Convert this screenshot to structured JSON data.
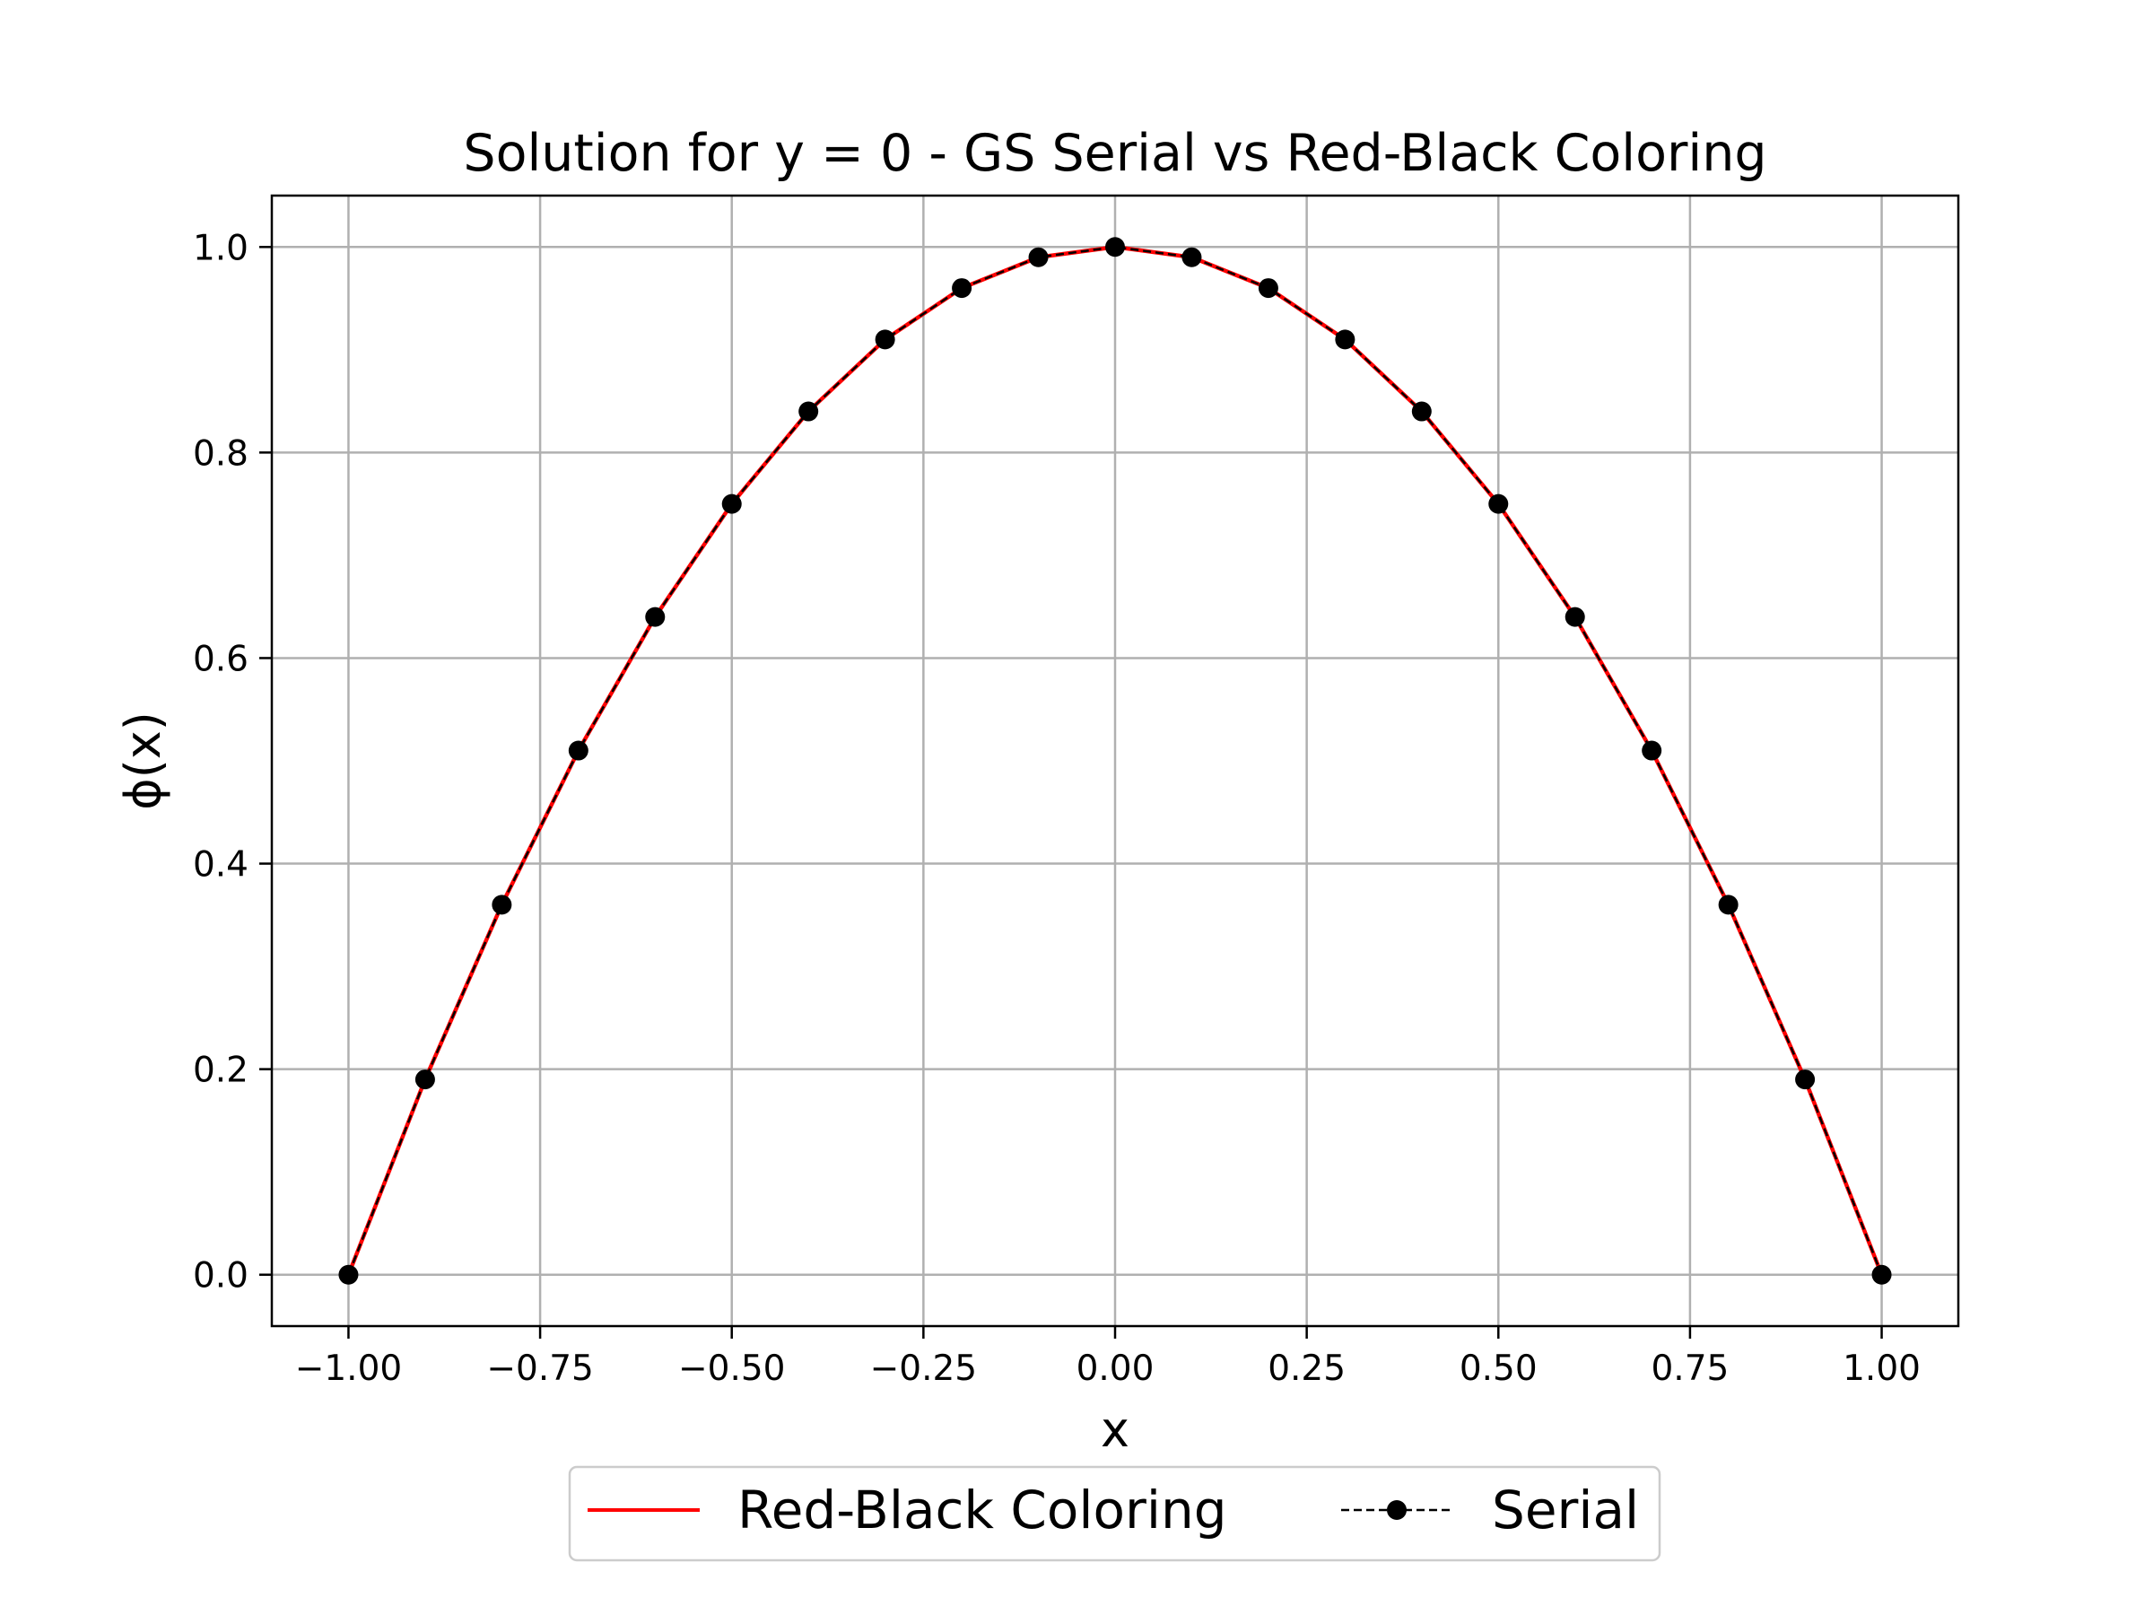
{
  "chart_data": {
    "type": "line",
    "title": "Solution for y = 0 - GS Serial vs Red-Black Coloring",
    "xlabel": "x",
    "ylabel": "ϕ(x)",
    "xlim": [
      -1.1,
      1.1
    ],
    "ylim": [
      -0.05,
      1.05
    ],
    "grid": true,
    "legend_position": "bottom-center",
    "x_ticks": [
      -1.0,
      -0.75,
      -0.5,
      -0.25,
      0.0,
      0.25,
      0.5,
      0.75,
      1.0
    ],
    "x_tick_labels": [
      "−1.00",
      "−0.75",
      "−0.50",
      "−0.25",
      "0.00",
      "0.25",
      "0.50",
      "0.75",
      "1.00"
    ],
    "y_ticks": [
      0.0,
      0.2,
      0.4,
      0.6,
      0.8,
      1.0
    ],
    "y_tick_labels": [
      "0.0",
      "0.2",
      "0.4",
      "0.6",
      "0.8",
      "1.0"
    ],
    "x": [
      -1.0,
      -0.9,
      -0.8,
      -0.7,
      -0.6,
      -0.5,
      -0.4,
      -0.3,
      -0.2,
      -0.1,
      0.0,
      0.1,
      0.2,
      0.3,
      0.4,
      0.5,
      0.6,
      0.7,
      0.8,
      0.9,
      1.0
    ],
    "series": [
      {
        "name": "Red-Black Coloring",
        "color": "#ff0000",
        "style": "solid",
        "values": [
          0.0,
          0.19,
          0.36,
          0.51,
          0.64,
          0.75,
          0.84,
          0.91,
          0.96,
          0.99,
          1.0,
          0.99,
          0.96,
          0.91,
          0.84,
          0.75,
          0.64,
          0.51,
          0.36,
          0.19,
          0.0
        ]
      },
      {
        "name": "Serial",
        "color": "#000000",
        "style": "dashed",
        "marker": "circle",
        "values": [
          0.0,
          0.19,
          0.36,
          0.51,
          0.64,
          0.75,
          0.84,
          0.91,
          0.96,
          0.99,
          1.0,
          0.99,
          0.96,
          0.91,
          0.84,
          0.75,
          0.64,
          0.51,
          0.36,
          0.19,
          0.0
        ]
      }
    ]
  }
}
